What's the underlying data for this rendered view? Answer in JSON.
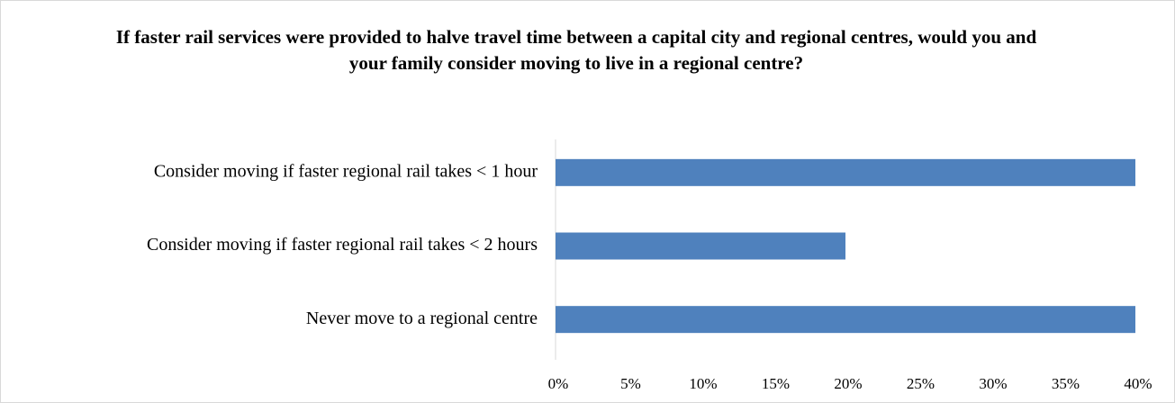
{
  "chart_data": {
    "type": "bar",
    "orientation": "horizontal",
    "title": "If faster rail services were provided to halve travel time between a capital city and regional centres, would you and your family consider moving to live in a regional centre?",
    "categories": [
      "Consider moving if faster regional rail takes < 1 hour",
      "Consider moving if faster regional rail takes < 2 hours",
      "Never move to a regional centre"
    ],
    "values": [
      40,
      20,
      40
    ],
    "color": "#4f81bd",
    "xlim": [
      0,
      40
    ],
    "xticks": [
      {
        "value": 0,
        "label": "0%"
      },
      {
        "value": 5,
        "label": "5%"
      },
      {
        "value": 10,
        "label": "10%"
      },
      {
        "value": 15,
        "label": "15%"
      },
      {
        "value": 20,
        "label": "20%"
      },
      {
        "value": 25,
        "label": "25%"
      },
      {
        "value": 30,
        "label": "30%"
      },
      {
        "value": 35,
        "label": "35%"
      },
      {
        "value": 40,
        "label": "40%"
      }
    ],
    "grid": false
  }
}
